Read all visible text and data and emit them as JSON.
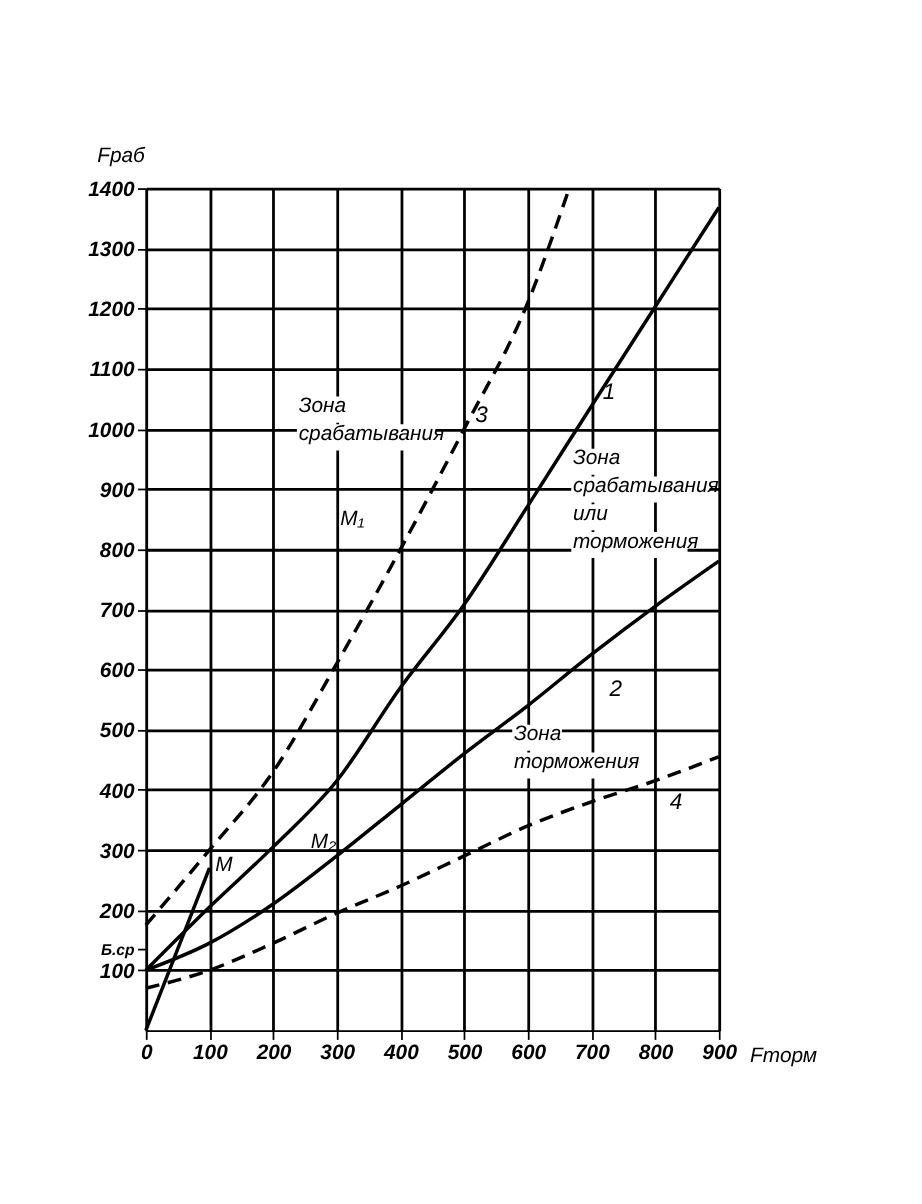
{
  "chart_data": {
    "type": "line",
    "xlabel": "Fторм",
    "ylabel": "Fраб",
    "xlim": [
      0,
      900
    ],
    "ylim": [
      0,
      1400
    ],
    "xticks": [
      0,
      100,
      200,
      300,
      400,
      500,
      600,
      700,
      800,
      900
    ],
    "yticks": [
      {
        "value": 135,
        "label": "Б.ср"
      },
      100,
      200,
      300,
      400,
      500,
      600,
      700,
      800,
      900,
      1000,
      1100,
      1200,
      1300,
      1400
    ],
    "grid": true,
    "marker": "none",
    "series": [
      {
        "name": "1",
        "color": "#000000",
        "line_style": "solid",
        "x": [
          0,
          100,
          200,
          300,
          400,
          500,
          600,
          700,
          800,
          900
        ],
        "values": [
          100,
          205,
          305,
          415,
          570,
          708,
          872,
          1038,
          1203,
          1368
        ]
      },
      {
        "name": "2",
        "color": "#000000",
        "line_style": "solid",
        "x": [
          0,
          100,
          200,
          300,
          400,
          500,
          600,
          700,
          800,
          900
        ],
        "values": [
          100,
          145,
          210,
          290,
          375,
          460,
          540,
          625,
          705,
          780
        ]
      },
      {
        "name": "3",
        "color": "#000000",
        "line_style": "dashed",
        "x": [
          0,
          100,
          200,
          300,
          400,
          500,
          600,
          665
        ],
        "values": [
          175,
          300,
          430,
          610,
          800,
          1000,
          1210,
          1400
        ]
      },
      {
        "name": "4",
        "color": "#000000",
        "line_style": "dashed",
        "x": [
          0,
          100,
          200,
          300,
          400,
          500,
          600,
          700,
          800,
          900
        ],
        "values": [
          70,
          100,
          145,
          195,
          240,
          290,
          340,
          380,
          415,
          455
        ]
      },
      {
        "color": "#000000",
        "line_style": "solid",
        "x": [
          0,
          100
        ],
        "values": [
          0,
          270
        ]
      }
    ],
    "annotations": [
      "M",
      "M₁",
      "M₂",
      "Зона срабатывания",
      "Зона срабатывания или торможения",
      "Зона торможения"
    ]
  }
}
